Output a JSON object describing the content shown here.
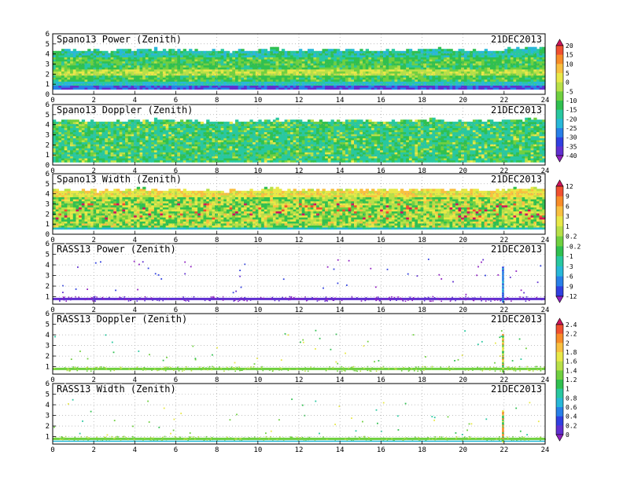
{
  "chart_data": [
    {
      "type": "heatmap",
      "title": "Spano13 Power (Zenith)",
      "date": "21DEC2013",
      "colorbar": "power",
      "x_ticks": [
        "0",
        "2",
        "4",
        "6",
        "8",
        "10",
        "12",
        "14",
        "16",
        "18",
        "20",
        "22",
        "24"
      ],
      "y_ticks": [
        "0",
        "1",
        "2",
        "3",
        "4",
        "5",
        "6"
      ],
      "xlim": [
        0,
        24
      ],
      "ylim": [
        0,
        6
      ],
      "grid": true,
      "height_range_hourly": [
        4.3,
        4.3,
        4.2,
        4.3,
        4.4,
        4.3,
        4.3,
        4.2,
        4.2,
        4.3,
        4.4,
        4.3,
        4.3,
        4.3,
        4.4,
        4.3,
        4.3,
        4.3,
        4.4,
        4.3,
        4.3,
        4.3,
        4.4,
        4.5
      ],
      "bottom_height": 0.5
    },
    {
      "type": "heatmap",
      "title": "Spano13 Doppler (Zenith)",
      "date": "21DEC2013",
      "colorbar": "power",
      "x_ticks": [
        "0",
        "2",
        "4",
        "6",
        "8",
        "10",
        "12",
        "14",
        "16",
        "18",
        "20",
        "22",
        "24"
      ],
      "y_ticks": [
        "0",
        "1",
        "2",
        "3",
        "4",
        "5",
        "6"
      ],
      "xlim": [
        0,
        24
      ],
      "ylim": [
        0,
        6
      ],
      "grid": true,
      "height_range_hourly": [
        4.3,
        4.3,
        4.2,
        4.3,
        4.4,
        4.3,
        4.3,
        4.2,
        4.2,
        4.3,
        4.4,
        4.3,
        4.3,
        4.3,
        4.4,
        4.3,
        4.3,
        4.3,
        4.4,
        4.3,
        4.3,
        4.3,
        4.4,
        4.5
      ],
      "bottom_height": 0.3
    },
    {
      "type": "heatmap",
      "title": "Spano13 Width (Zenith)",
      "date": "21DEC2013",
      "colorbar": "width",
      "x_ticks": [
        "0",
        "2",
        "4",
        "6",
        "8",
        "10",
        "12",
        "14",
        "16",
        "18",
        "20",
        "22",
        "24"
      ],
      "y_ticks": [
        "0",
        "1",
        "2",
        "3",
        "4",
        "5",
        "6"
      ],
      "xlim": [
        0,
        24
      ],
      "ylim": [
        0,
        6
      ],
      "grid": true,
      "height_range_hourly": [
        4.3,
        4.3,
        4.2,
        4.3,
        4.4,
        4.3,
        4.3,
        4.2,
        4.2,
        4.3,
        4.4,
        4.3,
        4.3,
        4.3,
        4.4,
        4.3,
        4.3,
        4.3,
        4.4,
        4.3,
        4.3,
        4.3,
        4.4,
        4.5
      ],
      "bottom_height": 0.5
    },
    {
      "type": "scatter",
      "title": "RASS13 Power (Zenith)",
      "date": "21DEC2013",
      "colorbar": "width",
      "x_ticks": [
        "0",
        "2",
        "4",
        "6",
        "8",
        "10",
        "12",
        "14",
        "16",
        "18",
        "20",
        "22",
        "24"
      ],
      "y_ticks": [
        "1",
        "2",
        "3",
        "4",
        "5",
        "6"
      ],
      "xlim": [
        0,
        24
      ],
      "ylim": [
        0.3,
        6
      ],
      "grid": true,
      "band_height": 0.85,
      "spike_x": 21.9,
      "spike_top": 3.9
    },
    {
      "type": "scatter",
      "title": "RASS13 Doppler (Zenith)",
      "date": "21DEC2013",
      "colorbar": "doppler",
      "x_ticks": [
        "0",
        "2",
        "4",
        "6",
        "8",
        "10",
        "12",
        "14",
        "16",
        "18",
        "20",
        "22",
        "24"
      ],
      "y_ticks": [
        "1",
        "2",
        "3",
        "4",
        "5",
        "6"
      ],
      "xlim": [
        0,
        24
      ],
      "ylim": [
        0.3,
        6
      ],
      "grid": true,
      "band_height": 0.85,
      "spike_x": 21.9,
      "spike_top": 4.1
    },
    {
      "type": "scatter",
      "title": "RASS13 Width (Zenith)",
      "date": "21DEC2013",
      "colorbar": "doppler",
      "x_ticks": [
        "0",
        "2",
        "4",
        "6",
        "8",
        "10",
        "12",
        "14",
        "16",
        "18",
        "20",
        "22",
        "24"
      ],
      "y_ticks": [
        "1",
        "2",
        "3",
        "4",
        "5",
        "6"
      ],
      "xlim": [
        0,
        24
      ],
      "ylim": [
        0.3,
        6
      ],
      "grid": true,
      "band_height": 0.85,
      "spike_x": 21.9,
      "spike_top": 3.6
    }
  ],
  "colorbars": {
    "power": {
      "labels": [
        "20",
        "15",
        "10",
        "5",
        "0",
        "-5",
        "-10",
        "-15",
        "-20",
        "-25",
        "-30",
        "-35",
        "-40"
      ],
      "colors": [
        "#d0145c",
        "#f05030",
        "#f88c28",
        "#f8c040",
        "#e8e848",
        "#b8e048",
        "#70d040",
        "#30c050",
        "#28c8a0",
        "#28b8d8",
        "#2880e8",
        "#3040e0",
        "#6030d0",
        "#9020c0"
      ]
    },
    "width": {
      "labels": [
        "12",
        "9",
        "6",
        "3",
        "1",
        "0.2",
        "-0.2",
        "-1",
        "-3",
        "-6",
        "-9",
        "-12"
      ],
      "colors": [
        "#d0145c",
        "#f05030",
        "#f88c28",
        "#f8c040",
        "#e8e848",
        "#b8e048",
        "#70d040",
        "#30c050",
        "#28c8a0",
        "#28b8d8",
        "#2880e8",
        "#3040e0",
        "#9020c0"
      ]
    },
    "doppler": {
      "labels": [
        "2.4",
        "2.2",
        "2",
        "1.8",
        "1.6",
        "1.4",
        "1.2",
        "1",
        "0.8",
        "0.6",
        "0.4",
        "0.2",
        "0"
      ],
      "colors": [
        "#d0145c",
        "#f05030",
        "#f88c28",
        "#f8c040",
        "#e8e848",
        "#b8e048",
        "#70d040",
        "#30c050",
        "#28c8a0",
        "#28b8d8",
        "#2880e8",
        "#3040e0",
        "#6030d0",
        "#9020c0"
      ]
    }
  }
}
